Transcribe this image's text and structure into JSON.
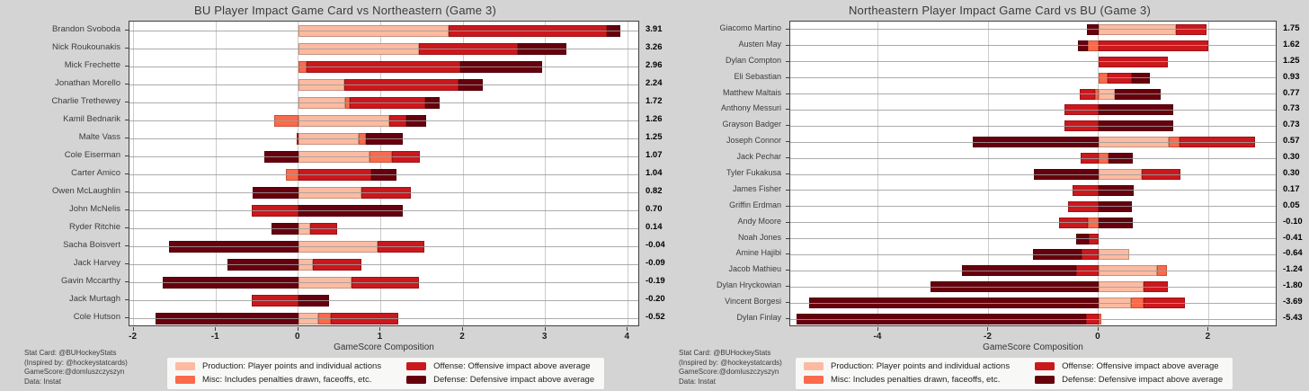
{
  "colors": {
    "background": "#d4d4d4",
    "plot_background": "#ffffff",
    "grid": "#cbcbcb",
    "axis": "#3f3f3f",
    "production": "#fcbba1",
    "misc": "#fb6a4a",
    "offense": "#cb181d",
    "defense": "#67000d"
  },
  "credits": [
    "Stat Card: @BUHockeyStats",
    "(Inspired by: @hockeystatcards)",
    "GameScore:@domluszczyszyn",
    "Data: Instat"
  ],
  "legend": {
    "items": [
      {
        "key": "production",
        "label": "Production: Player points and individual actions",
        "color": "#fcbba1"
      },
      {
        "key": "misc",
        "label": "Misc: Includes penalties drawn, faceoffs, etc.",
        "color": "#fb6a4a"
      },
      {
        "key": "offense",
        "label": "Offense: Offensive impact above average",
        "color": "#cb181d"
      },
      {
        "key": "defense",
        "label": "Defense: Defensive impact above average",
        "color": "#67000d"
      }
    ]
  },
  "chart_data": [
    {
      "type": "bar",
      "orientation": "horizontal",
      "stacked": true,
      "diverging": true,
      "title": "BU Player Impact Game Card vs Northeastern (Game 3)",
      "xlabel": "GameScore Composition",
      "xlim": [
        -2.05,
        4.15
      ],
      "xticks": [
        -2,
        -1,
        0,
        1,
        2,
        3,
        4
      ],
      "grid": true,
      "series_keys": [
        "production",
        "misc",
        "offense",
        "defense"
      ],
      "players": [
        {
          "name": "Brandon Svoboda",
          "total": "3.91",
          "production": 1.82,
          "misc": 0.0,
          "offense": 1.93,
          "defense": 0.16
        },
        {
          "name": "Nick Roukounakis",
          "total": "3.26",
          "production": 1.47,
          "misc": 0.0,
          "offense": 1.2,
          "defense": 0.59
        },
        {
          "name": "Mick Frechette",
          "total": "2.96",
          "production": 0.0,
          "misc": 0.1,
          "offense": 1.87,
          "defense": 0.99
        },
        {
          "name": "Jonathan Morello",
          "total": "2.24",
          "production": 0.56,
          "misc": 0.0,
          "offense": 1.38,
          "defense": 0.3
        },
        {
          "name": "Charlie Trethewey",
          "total": "1.72",
          "production": 0.57,
          "misc": 0.05,
          "offense": 0.92,
          "defense": 0.18
        },
        {
          "name": "Kamil Bednarik",
          "total": "1.26",
          "production": 1.11,
          "misc": -0.29,
          "offense": 0.2,
          "defense": 0.24
        },
        {
          "name": "Malte Vass",
          "total": "1.25",
          "production": 0.73,
          "misc": 0.09,
          "offense": -0.02,
          "defense": 0.45
        },
        {
          "name": "Cole Eiserman",
          "total": "1.07",
          "production": 0.86,
          "misc": 0.28,
          "offense": 0.34,
          "defense": -0.41
        },
        {
          "name": "Carter Amico",
          "total": "1.04",
          "production": 0.0,
          "misc": -0.15,
          "offense": 0.89,
          "defense": 0.3
        },
        {
          "name": "Owen McLaughlin",
          "total": "0.82",
          "production": 0.77,
          "misc": 0.0,
          "offense": 0.6,
          "defense": -0.55
        },
        {
          "name": "John McNelis",
          "total": "0.70",
          "production": 0.0,
          "misc": 0.0,
          "offense": -0.57,
          "defense": 1.27
        },
        {
          "name": "Ryder Ritchie",
          "total": "0.14",
          "production": 0.14,
          "misc": 0.0,
          "offense": 0.33,
          "defense": -0.33
        },
        {
          "name": "Sacha Boisvert",
          "total": "-0.04",
          "production": 0.96,
          "misc": 0.0,
          "offense": 0.57,
          "defense": -1.57
        },
        {
          "name": "Jack Harvey",
          "total": "-0.09",
          "production": 0.18,
          "misc": 0.0,
          "offense": 0.59,
          "defense": -0.86
        },
        {
          "name": "Gavin Mccarthy",
          "total": "-0.19",
          "production": 0.65,
          "misc": 0.0,
          "offense": 0.81,
          "defense": -1.65
        },
        {
          "name": "Jack Murtagh",
          "total": "-0.20",
          "production": 0.0,
          "misc": 0.0,
          "offense": -0.57,
          "defense": 0.37
        },
        {
          "name": "Cole Hutson",
          "total": "-0.52",
          "production": 0.24,
          "misc": 0.15,
          "offense": 0.82,
          "defense": -1.73
        }
      ]
    },
    {
      "type": "bar",
      "orientation": "horizontal",
      "stacked": true,
      "diverging": true,
      "title": "Northeastern Player Impact Game Card vs BU (Game 3)",
      "xlabel": "GameScore Composition",
      "xlim": [
        -5.6,
        3.25
      ],
      "xticks": [
        -4,
        -2,
        0,
        2
      ],
      "grid": true,
      "series_keys": [
        "production",
        "misc",
        "offense",
        "defense"
      ],
      "players": [
        {
          "name": "Giacomo Martino",
          "total": "1.75",
          "production": 1.4,
          "misc": 0.0,
          "offense": 0.56,
          "defense": -0.21
        },
        {
          "name": "Austen May",
          "total": "1.62",
          "production": 0.0,
          "misc": -0.2,
          "offense": 2.0,
          "defense": -0.18
        },
        {
          "name": "Dylan Compton",
          "total": "1.25",
          "production": 0.0,
          "misc": 0.0,
          "offense": 1.25,
          "defense": 0.0
        },
        {
          "name": "Eli Sebastian",
          "total": "0.93",
          "production": 0.0,
          "misc": 0.16,
          "offense": 0.44,
          "defense": 0.33
        },
        {
          "name": "Matthew Maltais",
          "total": "0.77",
          "production": 0.29,
          "misc": -0.07,
          "offense": -0.28,
          "defense": 0.83
        },
        {
          "name": "Anthony Messuri",
          "total": "0.73",
          "production": 0.0,
          "misc": 0.0,
          "offense": -0.62,
          "defense": 1.35
        },
        {
          "name": "Grayson Badger",
          "total": "0.73",
          "production": 0.0,
          "misc": 0.0,
          "offense": -0.62,
          "defense": 1.35
        },
        {
          "name": "Joseph Connor",
          "total": "0.57",
          "production": 1.28,
          "misc": 0.19,
          "offense": 1.38,
          "defense": -2.28
        },
        {
          "name": "Jack Pechar",
          "total": "0.30",
          "production": 0.0,
          "misc": 0.18,
          "offense": -0.32,
          "defense": 0.44
        },
        {
          "name": "Tyler Fukakusa",
          "total": "0.30",
          "production": 0.78,
          "misc": 0.0,
          "offense": 0.7,
          "defense": -1.18
        },
        {
          "name": "James Fisher",
          "total": "0.17",
          "production": 0.0,
          "misc": 0.0,
          "offense": -0.47,
          "defense": 0.64
        },
        {
          "name": "Griffin Erdman",
          "total": "0.05",
          "production": 0.0,
          "misc": 0.0,
          "offense": -0.56,
          "defense": 0.61
        },
        {
          "name": "Andy Moore",
          "total": "-0.10",
          "production": 0.0,
          "misc": -0.19,
          "offense": -0.53,
          "defense": 0.62
        },
        {
          "name": "Noah Jones",
          "total": "-0.41",
          "production": 0.0,
          "misc": 0.0,
          "offense": -0.18,
          "defense": -0.23
        },
        {
          "name": "Amine Hajibi",
          "total": "-0.64",
          "production": 0.55,
          "misc": 0.0,
          "offense": -0.31,
          "defense": -0.88
        },
        {
          "name": "Jacob Mathieu",
          "total": "-1.24",
          "production": 1.07,
          "misc": 0.17,
          "offense": -0.4,
          "defense": -2.08
        },
        {
          "name": "Dylan Hryckowian",
          "total": "-1.80",
          "production": 0.81,
          "misc": 0.0,
          "offense": 0.45,
          "defense": -3.06
        },
        {
          "name": "Vincent Borgesi",
          "total": "-3.69",
          "production": 0.59,
          "misc": 0.23,
          "offense": 0.75,
          "defense": -5.26
        },
        {
          "name": "Dylan Finlay",
          "total": "-5.43",
          "production": 0.0,
          "misc": 0.05,
          "offense": -0.23,
          "defense": -5.25
        }
      ]
    }
  ]
}
